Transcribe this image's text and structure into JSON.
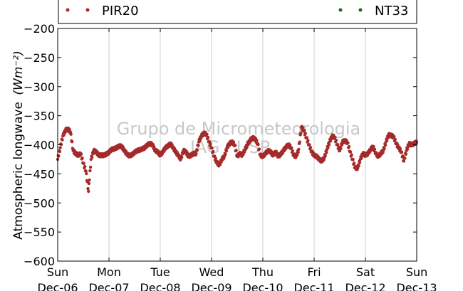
{
  "chart_data": {
    "type": "scatter",
    "title": "",
    "ylabel": "Atmospheric longwave",
    "ylabel_unit": "(Wm⁻²)",
    "ylim": [
      -600,
      -200
    ],
    "yticks": [
      -200,
      -250,
      -300,
      -350,
      -400,
      -450,
      -500,
      -550,
      -600
    ],
    "ytick_labels": [
      "−200",
      "−250",
      "−300",
      "−350",
      "−400",
      "−450",
      "−500",
      "−550",
      "−600"
    ],
    "xlim": [
      0,
      7
    ],
    "xticks": [
      {
        "x": 0,
        "day": "Sun",
        "date": "Dec-06"
      },
      {
        "x": 1,
        "day": "Mon",
        "date": "Dec-07"
      },
      {
        "x": 2,
        "day": "Tue",
        "date": "Dec-08"
      },
      {
        "x": 3,
        "day": "Wed",
        "date": "Dec-09"
      },
      {
        "x": 4,
        "day": "Thu",
        "date": "Dec-10"
      },
      {
        "x": 5,
        "day": "Fri",
        "date": "Dec-11"
      },
      {
        "x": 6,
        "day": "Sat",
        "date": "Dec-12"
      },
      {
        "x": 7,
        "day": "Sun",
        "date": "Dec-13"
      }
    ],
    "grid": "vertical",
    "legend_position": "top",
    "watermark": [
      "Grupo de Micrometeorologia",
      "IAG / USP"
    ],
    "series": [
      {
        "name": "PIR20",
        "color": "#a52a2a",
        "x": [
          0.0,
          0.05,
          0.1,
          0.15,
          0.2,
          0.25,
          0.3,
          0.35,
          0.4,
          0.45,
          0.5,
          0.55,
          0.6,
          0.65,
          0.7,
          0.75,
          0.8,
          0.85,
          0.9,
          0.95,
          1.0,
          1.05,
          1.1,
          1.15,
          1.2,
          1.25,
          1.3,
          1.35,
          1.4,
          1.45,
          1.5,
          1.55,
          1.6,
          1.65,
          1.7,
          1.75,
          1.8,
          1.85,
          1.9,
          1.95,
          2.0,
          2.05,
          2.1,
          2.15,
          2.2,
          2.25,
          2.3,
          2.35,
          2.4,
          2.45,
          2.5,
          2.55,
          2.6,
          2.65,
          2.7,
          2.75,
          2.8,
          2.85,
          2.9,
          2.95,
          3.0,
          3.05,
          3.1,
          3.15,
          3.2,
          3.25,
          3.3,
          3.35,
          3.4,
          3.45,
          3.5,
          3.55,
          3.6,
          3.65,
          3.7,
          3.75,
          3.8,
          3.85,
          3.9,
          3.95,
          4.0,
          4.05,
          4.1,
          4.15,
          4.2,
          4.25,
          4.3,
          4.35,
          4.4,
          4.45,
          4.5,
          4.55,
          4.6,
          4.65,
          4.7,
          4.75,
          4.8,
          4.85,
          4.9,
          4.95,
          5.0,
          5.05,
          5.1,
          5.15,
          5.2,
          5.25,
          5.3,
          5.35,
          5.4,
          5.45,
          5.5,
          5.55,
          5.6,
          5.65,
          5.7,
          5.75,
          5.8,
          5.85,
          5.9,
          5.95,
          6.0,
          6.05,
          6.1,
          6.15,
          6.2,
          6.25,
          6.3,
          6.35,
          6.4,
          6.45,
          6.5,
          6.55,
          6.6,
          6.65,
          6.7,
          6.75,
          6.8,
          6.85,
          6.9,
          6.95,
          7.0
        ],
        "y": [
          -425,
          -405,
          -385,
          -375,
          -373,
          -378,
          -410,
          -415,
          -418,
          -415,
          -432,
          -445,
          -480,
          -425,
          -410,
          -412,
          -418,
          -418,
          -418,
          -416,
          -413,
          -408,
          -407,
          -405,
          -402,
          -403,
          -410,
          -416,
          -419,
          -417,
          -413,
          -410,
          -409,
          -407,
          -405,
          -400,
          -398,
          -400,
          -410,
          -412,
          -418,
          -412,
          -405,
          -402,
          -398,
          -405,
          -412,
          -418,
          -425,
          -410,
          -412,
          -420,
          -418,
          -415,
          -415,
          -395,
          -385,
          -380,
          -382,
          -395,
          -405,
          -420,
          -430,
          -435,
          -425,
          -420,
          -405,
          -398,
          -395,
          -400,
          -420,
          -415,
          -418,
          -408,
          -400,
          -392,
          -388,
          -390,
          -398,
          -418,
          -420,
          -415,
          -410,
          -412,
          -418,
          -412,
          -420,
          -416,
          -410,
          -404,
          -400,
          -405,
          -418,
          -420,
          -408,
          -370,
          -375,
          -388,
          -400,
          -412,
          -418,
          -420,
          -425,
          -428,
          -422,
          -408,
          -395,
          -385,
          -387,
          -400,
          -410,
          -395,
          -393,
          -396,
          -412,
          -425,
          -440,
          -440,
          -425,
          -415,
          -418,
          -415,
          -408,
          -403,
          -415,
          -420,
          -415,
          -410,
          -395,
          -383,
          -384,
          -386,
          -398,
          -405,
          -412,
          -428,
          -410,
          -398,
          -400,
          -398,
          -395
        ]
      },
      {
        "name": "NT33",
        "color": "#1a6b1a",
        "x": [],
        "y": []
      }
    ]
  }
}
